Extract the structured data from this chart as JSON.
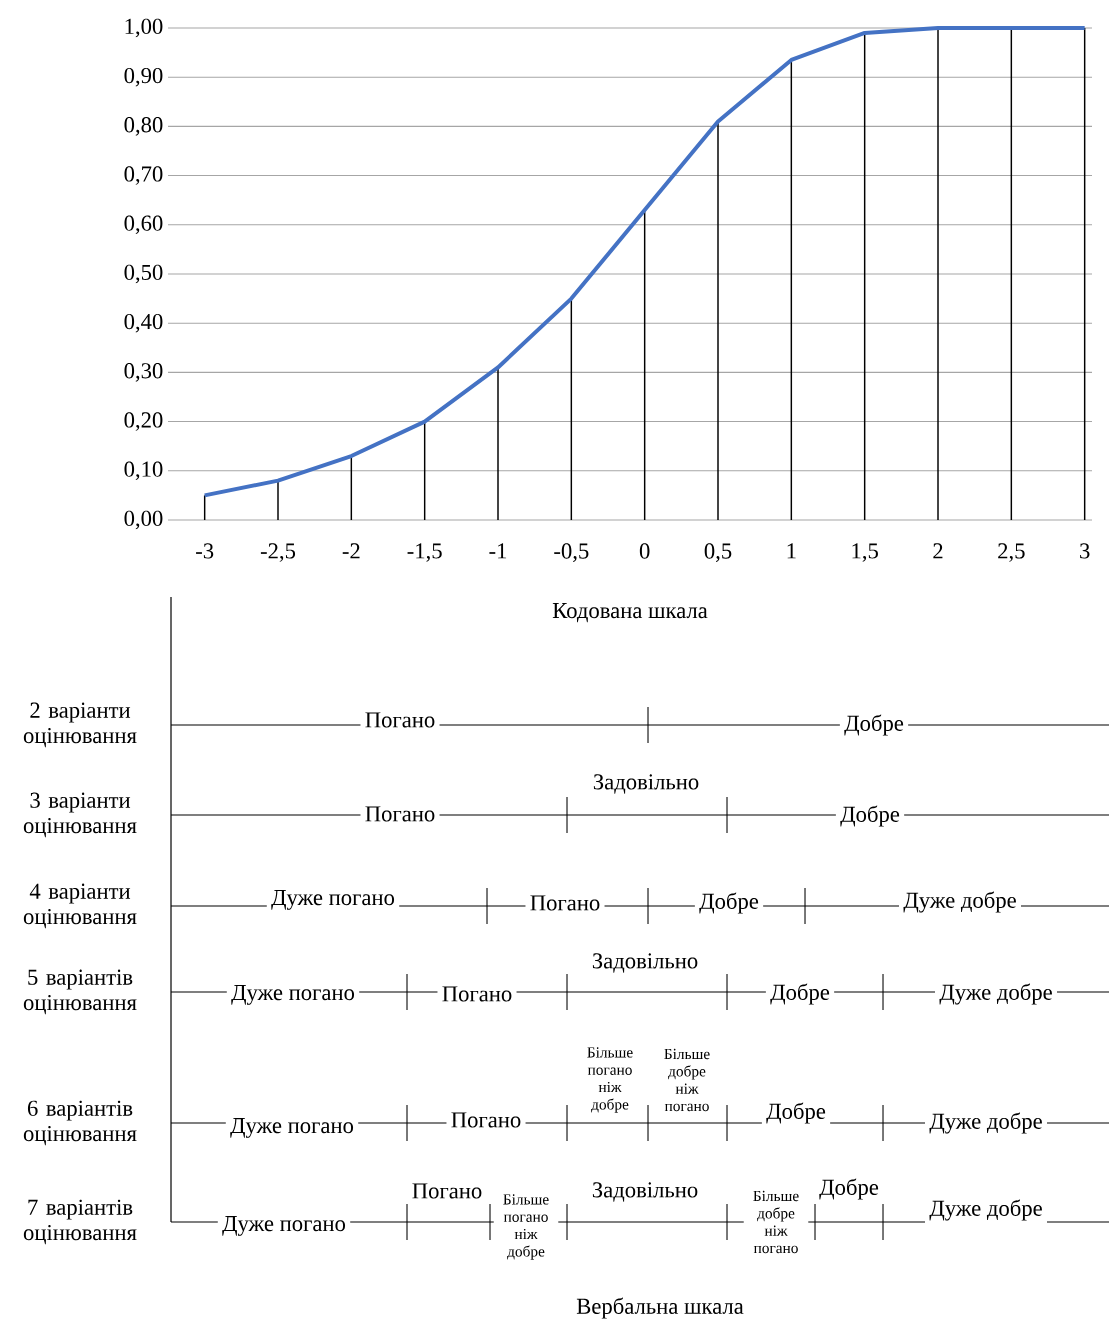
{
  "chart_data": [
    {
      "type": "line",
      "xlabel": "Кодована шкала",
      "xlim": [
        -3.25,
        3.05
      ],
      "xticks": [
        -3,
        {
          "value": -2.5,
          "label": "-2,5"
        },
        -2,
        {
          "value": -1.5,
          "label": "-1,5"
        },
        -1,
        {
          "value": -0.5,
          "label": "-0,5"
        },
        0,
        {
          "value": 0.5,
          "label": "0,5"
        },
        1,
        {
          "value": 1.5,
          "label": "1,5"
        },
        2,
        {
          "value": 2.5,
          "label": "2,5"
        },
        3
      ],
      "ylim": [
        0,
        1
      ],
      "yticks": [
        {
          "value": 0,
          "label": "0,00"
        },
        {
          "value": 0.1,
          "label": "0,10"
        },
        {
          "value": 0.2,
          "label": "0,20"
        },
        {
          "value": 0.3,
          "label": "0,30"
        },
        {
          "value": 0.4,
          "label": "0,40"
        },
        {
          "value": 0.5,
          "label": "0,50"
        },
        {
          "value": 0.6,
          "label": "0,60"
        },
        {
          "value": 0.7,
          "label": "0,70"
        },
        {
          "value": 0.8,
          "label": "0,80"
        },
        {
          "value": 0.9,
          "label": "0,90"
        },
        {
          "value": 1,
          "label": "1,00"
        }
      ],
      "grid": "y",
      "x": [
        -3,
        -2.5,
        -2,
        -1.5,
        -1,
        -0.5,
        0,
        0.5,
        1,
        1.5,
        2,
        2.5,
        3
      ],
      "series": [
        {
          "type": "bar",
          "color": "#000000",
          "values": [
            0.05,
            0.08,
            0.13,
            0.2,
            0.31,
            0.45,
            0.63,
            0.81,
            0.935,
            0.99,
            1.0,
            1.0,
            1.0
          ]
        },
        {
          "type": "line",
          "color": "#4472c4",
          "values": [
            0.05,
            0.08,
            0.13,
            0.2,
            0.31,
            0.45,
            0.63,
            0.81,
            0.935,
            0.99,
            1.0,
            1.0,
            1.0
          ]
        }
      ]
    },
    {
      "type": "other",
      "xlabel": "Вербальна шкала",
      "categories": [
        "2 варіанти оцінювання",
        "3 варіанти оцінювання",
        "4 варіанти оцінювання",
        "5 варіантів оцінювання",
        "6 варіантів оцінювання",
        "7 варіантів оцінювання"
      ],
      "annotations": [
        "Погано",
        "Добре",
        "Погано",
        "Задовільно",
        "Добре",
        "Дуже погано",
        "Погано",
        "Добре",
        "Дуже добре",
        "Дуже погано",
        "Погано",
        "Задовільно",
        "Добре",
        "Дуже добре",
        "Дуже погано",
        "Погано",
        "Більше погано ніж добре",
        "Більше добре ніж погано",
        "Добре",
        "Дуже добре",
        "Дуже погано",
        "Погано",
        "Більше погано ніж добре",
        "Задовільно",
        "Більше добре ніж погано",
        "Добре",
        "Дуже добре"
      ]
    }
  ]
}
